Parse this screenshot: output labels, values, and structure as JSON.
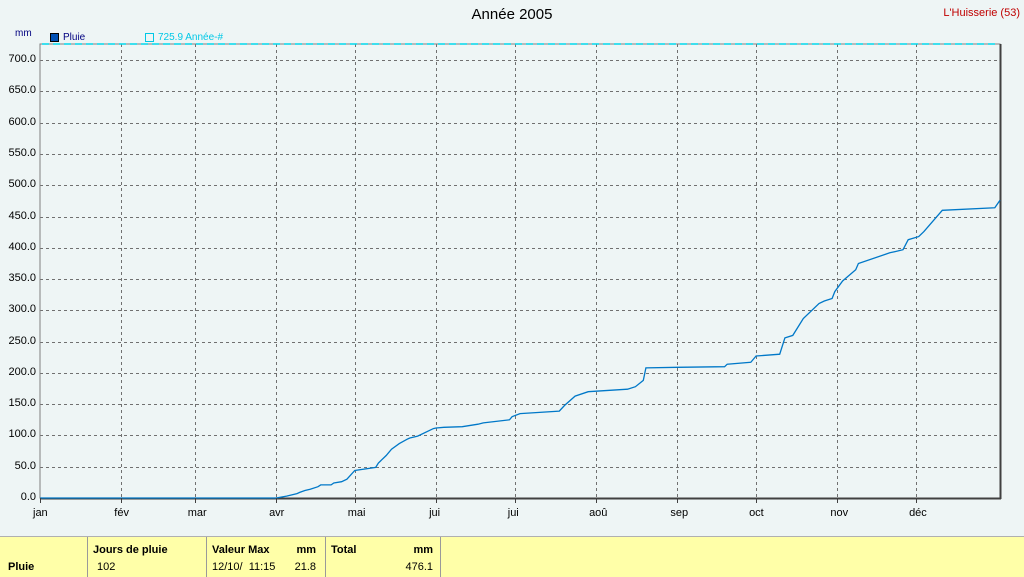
{
  "header": {
    "title": "Année 2005",
    "station": "L'Huisserie (53)",
    "unit": "mm"
  },
  "legend": {
    "series1": "Pluie",
    "series2": "725.9 Année-#"
  },
  "colors": {
    "background": "#eef5f5",
    "series": "#0078c8",
    "reference": "#00d8ec",
    "grid": "#707070",
    "stats_bg": "#ffffa8"
  },
  "chart_data": {
    "type": "line",
    "title": "Année 2005",
    "ylabel": "mm",
    "ylim": [
      0,
      725.9
    ],
    "yticks": [
      "0.0",
      "50.0",
      "100.0",
      "150.0",
      "200.0",
      "250.0",
      "300.0",
      "350.0",
      "400.0",
      "450.0",
      "500.0",
      "550.0",
      "600.0",
      "650.0",
      "700.0"
    ],
    "ytick_values": [
      0,
      50,
      100,
      150,
      200,
      250,
      300,
      350,
      400,
      450,
      500,
      550,
      600,
      650,
      700
    ],
    "xticks": [
      "jan",
      "fév",
      "mar",
      "avr",
      "mai",
      "jui",
      "jui",
      "aoû",
      "sep",
      "oct",
      "nov",
      "déc"
    ],
    "xtick_days": [
      1,
      32,
      60,
      91,
      121,
      152,
      182,
      213,
      244,
      274,
      305,
      335
    ],
    "grid": true,
    "reference_line": {
      "name": "725.9 Année-#",
      "value": 725.9
    },
    "series": [
      {
        "name": "Pluie",
        "x": [
          1,
          91,
          95,
          97,
          99,
          100,
          102,
          104,
          107,
          108,
          112,
          113,
          116,
          118,
          121,
          129,
          130,
          133,
          135,
          138,
          141,
          142,
          145,
          151,
          152,
          155,
          162,
          168,
          170,
          180,
          181,
          184,
          199,
          201,
          205,
          210,
          225,
          228,
          231,
          232,
          244,
          262,
          263,
          272,
          274,
          283,
          285,
          288,
          292,
          298,
          300,
          303,
          304,
          307,
          312,
          313,
          325,
          327,
          330,
          332,
          336,
          338,
          345,
          365,
          367
        ],
        "y": [
          0,
          0,
          3,
          5,
          7,
          9,
          12,
          14,
          18,
          21,
          21,
          24,
          26,
          30,
          44,
          49,
          56,
          68,
          78,
          87,
          94,
          96,
          99,
          111,
          112,
          113,
          114,
          118,
          120,
          125,
          130,
          135,
          139,
          148,
          163,
          170,
          174,
          178,
          188,
          208,
          209,
          210,
          214,
          217,
          227,
          230,
          256,
          260,
          287,
          311,
          315,
          319,
          330,
          347,
          365,
          375,
          392,
          394,
          397,
          413,
          418,
          426,
          460,
          464,
          476.1
        ]
      }
    ]
  },
  "stats": {
    "row_label": "Pluie",
    "days_header": "Jours de pluie",
    "days_value": "102",
    "max_header": "Valeur Max",
    "max_unit": "mm",
    "max_date": "12/10/  11:15",
    "max_value": "21.8",
    "total_header": "Total",
    "total_unit": "mm",
    "total_value": "476.1"
  }
}
